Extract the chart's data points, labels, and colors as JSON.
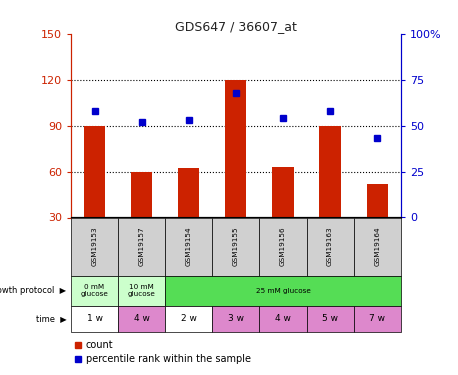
{
  "title": "GDS647 / 36607_at",
  "samples": [
    "GSM19153",
    "GSM19157",
    "GSM19154",
    "GSM19155",
    "GSM19156",
    "GSM19163",
    "GSM19164"
  ],
  "counts": [
    90,
    60,
    62,
    120,
    63,
    90,
    52
  ],
  "percentile_ranks": [
    58,
    52,
    53,
    68,
    54,
    58,
    43
  ],
  "ylim_left": [
    30,
    150
  ],
  "yticks_left": [
    30,
    60,
    90,
    120,
    150
  ],
  "ylim_right": [
    0,
    100
  ],
  "yticks_right": [
    0,
    25,
    50,
    75,
    100
  ],
  "bar_color": "#cc2200",
  "dot_color": "#0000cc",
  "grid_color": "black",
  "growth_protocol_row": [
    {
      "label": "0 mM\nglucose",
      "cols": 1,
      "color": "#ccffcc"
    },
    {
      "label": "10 mM\nglucose",
      "cols": 1,
      "color": "#ccffcc"
    },
    {
      "label": "25 mM glucose",
      "cols": 5,
      "color": "#55dd55"
    }
  ],
  "time_row": [
    "1 w",
    "4 w",
    "2 w",
    "3 w",
    "4 w",
    "5 w",
    "7 w"
  ],
  "time_colors": [
    "#ffffff",
    "#dd88cc",
    "#ffffff",
    "#dd88cc",
    "#dd88cc",
    "#dd88cc",
    "#dd88cc"
  ],
  "xlabel_growth": "growth protocol",
  "xlabel_time": "time",
  "legend_count_label": "count",
  "legend_pct_label": "percentile rank within the sample",
  "title_color": "#222222",
  "left_axis_color": "#cc2200",
  "right_axis_color": "#0000cc",
  "bar_width": 0.45,
  "sample_bg": "#d0d0d0",
  "right_axis_label": "100%"
}
